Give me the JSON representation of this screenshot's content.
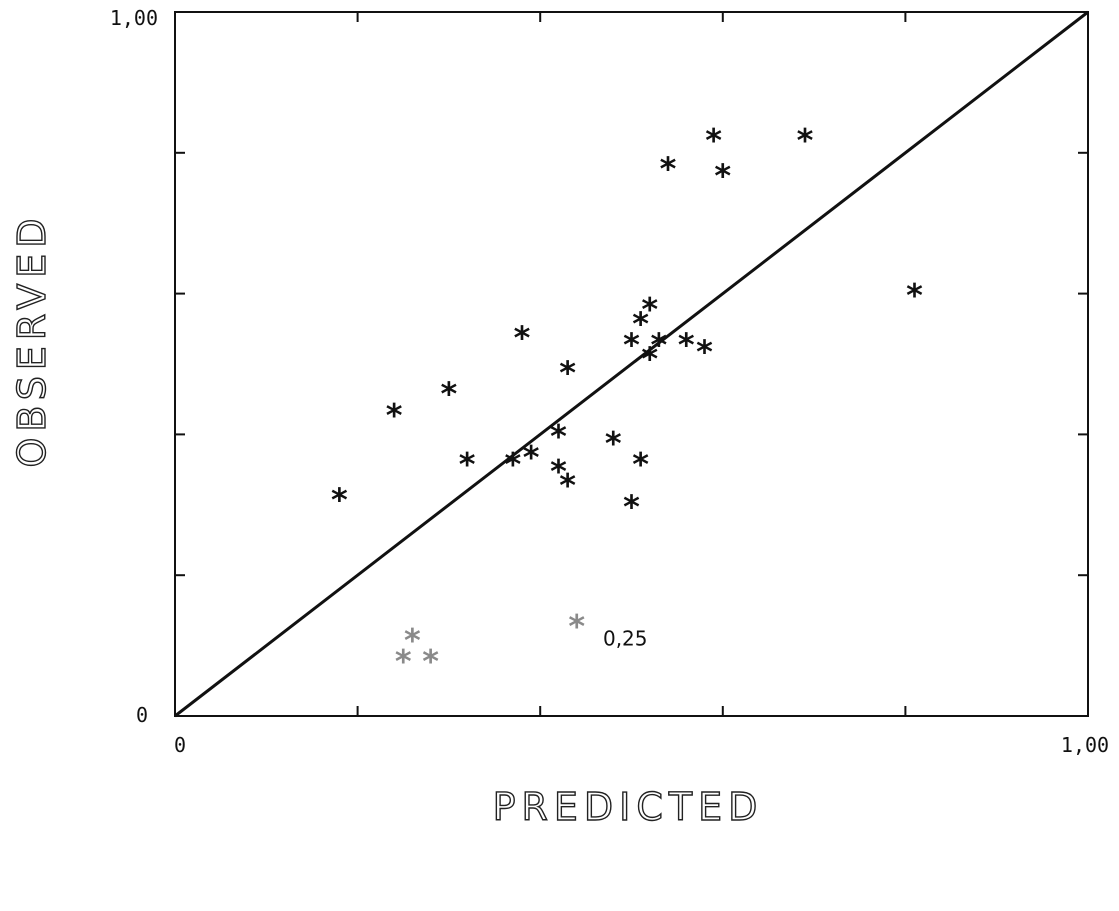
{
  "chart_data": {
    "type": "scatter",
    "title": "",
    "xlabel": "PREDICTED",
    "ylabel": "OBSERVED",
    "xlim": [
      0,
      1.0
    ],
    "ylim": [
      0,
      1.0
    ],
    "x_tick_labels": {
      "min": "0",
      "max": "1,00"
    },
    "y_tick_labels": {
      "min": "0",
      "max": "1,00"
    },
    "x_ticks": [
      0,
      0.2,
      0.4,
      0.6,
      0.8,
      1.0
    ],
    "y_ticks": [
      0,
      0.2,
      0.4,
      0.6,
      0.8,
      1.0
    ],
    "reference_line": {
      "type": "identity",
      "from": [
        0,
        0
      ],
      "to": [
        1,
        1
      ]
    },
    "marker": "*",
    "annotations": [
      {
        "text": "0,25",
        "x": 0.46,
        "y": 0.11
      }
    ],
    "points": [
      {
        "x": 0.18,
        "y": 0.31
      },
      {
        "x": 0.24,
        "y": 0.43
      },
      {
        "x": 0.3,
        "y": 0.46
      },
      {
        "x": 0.32,
        "y": 0.36
      },
      {
        "x": 0.38,
        "y": 0.54
      },
      {
        "x": 0.37,
        "y": 0.36
      },
      {
        "x": 0.39,
        "y": 0.37
      },
      {
        "x": 0.42,
        "y": 0.4
      },
      {
        "x": 0.42,
        "y": 0.35
      },
      {
        "x": 0.43,
        "y": 0.33
      },
      {
        "x": 0.43,
        "y": 0.49
      },
      {
        "x": 0.48,
        "y": 0.39
      },
      {
        "x": 0.5,
        "y": 0.53
      },
      {
        "x": 0.5,
        "y": 0.3
      },
      {
        "x": 0.51,
        "y": 0.36
      },
      {
        "x": 0.51,
        "y": 0.56
      },
      {
        "x": 0.52,
        "y": 0.51
      },
      {
        "x": 0.52,
        "y": 0.58
      },
      {
        "x": 0.53,
        "y": 0.53
      },
      {
        "x": 0.54,
        "y": 0.78
      },
      {
        "x": 0.56,
        "y": 0.53
      },
      {
        "x": 0.58,
        "y": 0.52
      },
      {
        "x": 0.59,
        "y": 0.82
      },
      {
        "x": 0.6,
        "y": 0.77
      },
      {
        "x": 0.69,
        "y": 0.82
      },
      {
        "x": 0.81,
        "y": 0.6
      },
      {
        "x": 0.26,
        "y": 0.11
      },
      {
        "x": 0.25,
        "y": 0.08
      },
      {
        "x": 0.28,
        "y": 0.08
      },
      {
        "x": 0.44,
        "y": 0.13
      }
    ]
  }
}
